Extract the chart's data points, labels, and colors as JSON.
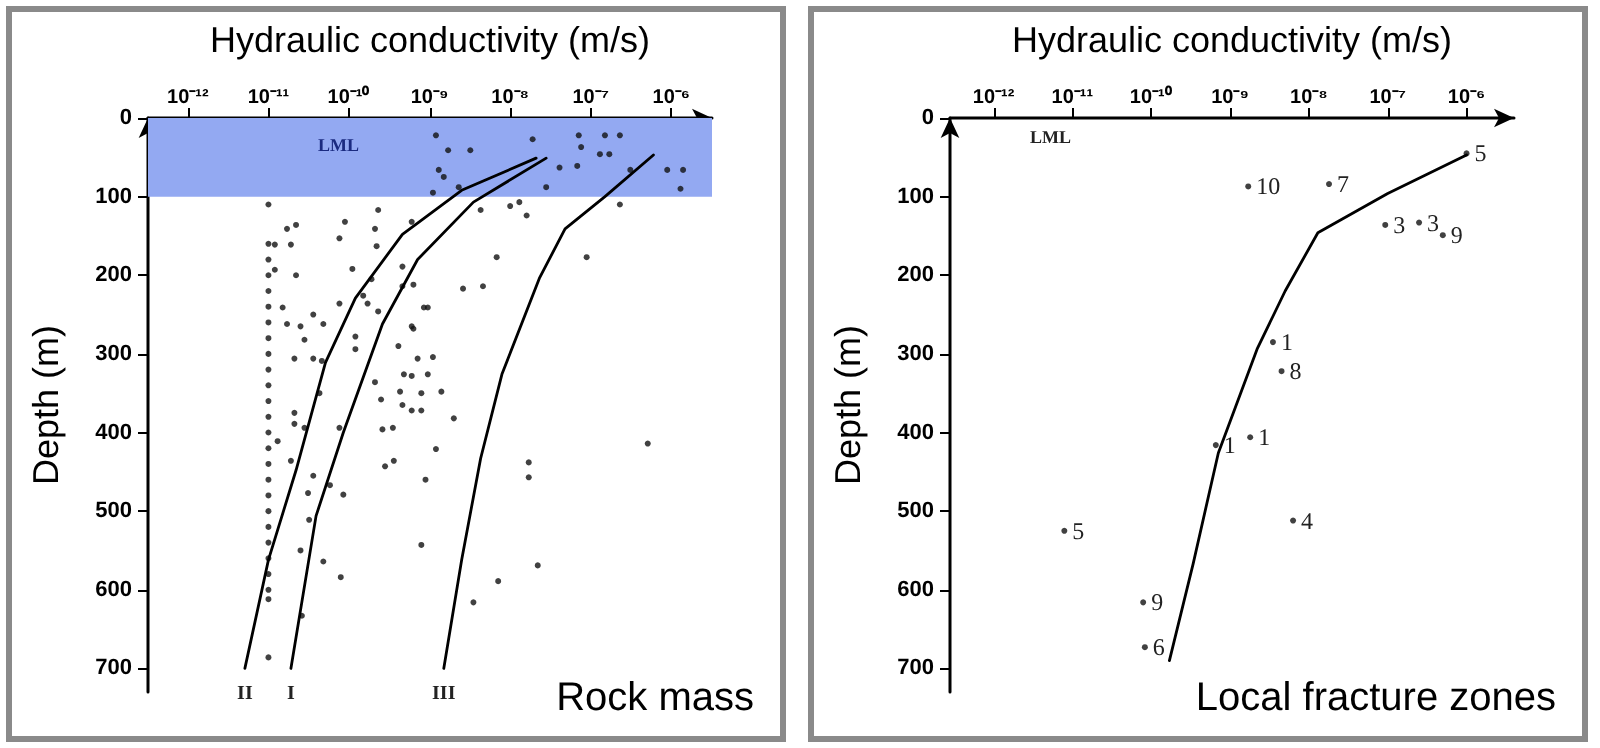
{
  "chart_data": [
    {
      "type": "scatter",
      "title": "Rock mass",
      "xlabel": "Hydraulic conductivity (m/s)",
      "ylabel": "Depth (m)",
      "log": "x",
      "xlim": [
        3.2e-13,
        3.2e-06
      ],
      "xticks": [
        {
          "value": 1e-12,
          "label": "10⁻¹²"
        },
        {
          "value": 1e-11,
          "label": "10⁻¹¹"
        },
        {
          "value": 1e-10,
          "label": "10⁻¹⁰"
        },
        {
          "value": 1e-09,
          "label": "10⁻⁹"
        },
        {
          "value": 1e-08,
          "label": "10⁻⁸"
        },
        {
          "value": 1e-07,
          "label": "10⁻⁷"
        },
        {
          "value": 1e-06,
          "label": "10⁻⁶"
        }
      ],
      "ylim": [
        730,
        0
      ],
      "yticks": [
        0,
        100,
        200,
        300,
        400,
        500,
        600,
        700
      ],
      "grid": false,
      "legend": false,
      "bands": [
        {
          "axis": "y",
          "from": 0,
          "to": 100,
          "label": "LML",
          "color": "#93a9f2"
        }
      ],
      "series": [
        {
          "type": "scatter",
          "color": "#111111",
          "marker": "circle",
          "x": [
            1.2e-09,
            1.7e-09,
            3.2e-09,
            1.3e-09,
            1.5e-09,
            2.3e-09,
            1.1e-09,
            1.9e-08,
            2.8e-08,
            4.1e-08,
            6.8e-08,
            7.1e-08,
            7.6e-08,
            1.5e-07,
            2.3e-07,
            1.3e-07,
            1.7e-07,
            3.1e-07,
            8.9e-07,
            1.4e-06,
            1.3e-06,
            2.3e-07,
            2.3e-10,
            1.7e-11,
            2.2e-11,
            1.2e-11,
            1.9e-11,
            7.6e-11,
            8.9e-11,
            2.1e-10,
            2.2e-10,
            6e-10,
            4.3e-09,
            1e-08,
            1.3e-08,
            1.6e-08,
            6.8e-09,
            8.9e-08,
            2.2e-11,
            1.2e-11,
            1.1e-10,
            1.9e-10,
            4.6e-10,
            4.6e-10,
            6.3e-10,
            2.6e-09,
            4.6e-09,
            1.5e-10,
            1.7e-10,
            2.3e-10,
            7.6e-11,
            8.5e-10,
            9.5e-10,
            1.5e-11,
            3.6e-11,
            4.8e-11,
            1.7e-11,
            2.5e-11,
            2.8e-11,
            1.2e-10,
            6e-10,
            6.3e-10,
            4.1e-10,
            1.2e-10,
            3.6e-11,
            2.1e-11,
            4.6e-11,
            7.1e-10,
            1.1e-09,
            4.8e-10,
            6e-10,
            9.5e-10,
            2.1e-10,
            2.5e-10,
            4.3e-10,
            4.6e-10,
            6e-10,
            7.9e-10,
            7.9e-10,
            1.4e-09,
            2e-09,
            4.3e-11,
            2.1e-11,
            2.1e-11,
            2.8e-11,
            1.3e-11,
            7.6e-11,
            2.6e-10,
            3.5e-10,
            2.8e-10,
            3.6e-10,
            1.2e-09,
            8.9e-10,
            1.9e-11,
            3.6e-11,
            3.1e-11,
            8.5e-11,
            5.8e-11,
            3.2e-11,
            2.5e-11,
            4.8e-11,
            7.9e-11,
            2.6e-11,
            7.9e-10,
            1.7e-08,
            1.7e-08,
            5.1e-07,
            2.2e-08,
            7.1e-09,
            3.5e-09,
            1e-11,
            1e-11,
            1e-11,
            1e-11,
            1e-11,
            1e-11,
            1e-11,
            1e-11,
            1e-11,
            1e-11,
            1e-11,
            1e-11,
            1e-11,
            1e-11,
            1e-11,
            1e-11,
            1e-11,
            1e-11,
            1e-11,
            1e-11,
            1e-11,
            1e-11,
            1e-11,
            1e-11,
            1e-11,
            1e-11
          ],
          "values": [
            22,
            41,
            41,
            66,
            75,
            88,
            95,
            27,
            88,
            63,
            61,
            22,
            37,
            22,
            22,
            46,
            46,
            66,
            66,
            66,
            90,
            110,
            117,
            141,
            136,
            161,
            161,
            153,
            132,
            141,
            163,
            132,
            117,
            112,
            107,
            124,
            177,
            177,
            200,
            193,
            192,
            205,
            189,
            214,
            212,
            217,
            214,
            226,
            236,
            246,
            236,
            241,
            241,
            241,
            250,
            262,
            262,
            265,
            282,
            278,
            265,
            268,
            290,
            294,
            306,
            306,
            309,
            306,
            304,
            326,
            328,
            326,
            336,
            358,
            348,
            365,
            372,
            372,
            350,
            348,
            382,
            350,
            375,
            389,
            394,
            411,
            394,
            396,
            394,
            443,
            436,
            421,
            460,
            436,
            455,
            477,
            479,
            467,
            511,
            550,
            564,
            584,
            633,
            543,
            438,
            457,
            414,
            569,
            589,
            616,
            686,
            110,
            160,
            180,
            200,
            220,
            240,
            260,
            280,
            300,
            320,
            340,
            360,
            380,
            400,
            420,
            440,
            460,
            480,
            500,
            520,
            540,
            560,
            580,
            600,
            612
          ]
        },
        {
          "type": "line",
          "name": "II",
          "color": "#000000",
          "marker": "none",
          "line_style": "solid",
          "x": [
            2.1e-08,
            2.5e-09,
            4.6e-10,
            1.2e-10,
            5.1e-11,
            2.2e-11,
            1e-11,
            5.1e-12
          ],
          "values": [
            51,
            92,
            148,
            229,
            311,
            448,
            562,
            700
          ]
        },
        {
          "type": "line",
          "name": "I",
          "color": "#000000",
          "marker": "none",
          "line_style": "solid",
          "x": [
            2.8e-08,
            3.5e-09,
            7.1e-10,
            2.6e-10,
            8.5e-11,
            3.9e-11,
            1.9e-11
          ],
          "values": [
            51,
            107,
            180,
            262,
            400,
            506,
            700
          ]
        },
        {
          "type": "line",
          "name": "III",
          "color": "#000000",
          "marker": "none",
          "line_style": "solid",
          "x": [
            6e-07,
            1.5e-07,
            4.8e-08,
            2.3e-08,
            7.9e-09,
            4.3e-09,
            2.5e-09,
            1.5e-09
          ],
          "values": [
            47,
            100,
            141,
            204,
            326,
            433,
            562,
            700
          ]
        }
      ]
    },
    {
      "type": "scatter",
      "title": "Local fracture zones",
      "xlabel": "Hydraulic conductivity (m/s)",
      "ylabel": "Depth (m)",
      "log": "x",
      "xlim": [
        2.8e-13,
        4e-06
      ],
      "xticks": [
        {
          "value": 1e-12,
          "label": "10⁻¹²"
        },
        {
          "value": 1e-11,
          "label": "10⁻¹¹"
        },
        {
          "value": 1e-10,
          "label": "10⁻¹⁰"
        },
        {
          "value": 1e-09,
          "label": "10⁻⁹"
        },
        {
          "value": 1e-08,
          "label": "10⁻⁸"
        },
        {
          "value": 1e-07,
          "label": "10⁻⁷"
        },
        {
          "value": 1e-06,
          "label": "10⁻⁶"
        }
      ],
      "ylim": [
        730,
        0
      ],
      "yticks": [
        0,
        100,
        200,
        300,
        400,
        500,
        600,
        700
      ],
      "grid": false,
      "legend": false,
      "annotations": [
        "LML",
        {
          "text": "5",
          "x": 1e-06,
          "y": 45
        },
        {
          "text": "10",
          "x": 1.7e-09,
          "y": 87
        },
        {
          "text": "7",
          "x": 1.8e-08,
          "y": 84
        },
        {
          "text": "3",
          "x": 9.3e-08,
          "y": 136
        },
        {
          "text": "3",
          "x": 2.5e-07,
          "y": 133
        },
        {
          "text": "9",
          "x": 5e-07,
          "y": 149
        },
        {
          "text": "1",
          "x": 3.5e-09,
          "y": 285
        },
        {
          "text": "8",
          "x": 4.5e-09,
          "y": 322
        },
        {
          "text": "1",
          "x": 6.6e-10,
          "y": 416
        },
        {
          "text": "1",
          "x": 1.8e-09,
          "y": 406
        },
        {
          "text": "5",
          "x": 7.9e-12,
          "y": 525
        },
        {
          "text": "4",
          "x": 6.3e-09,
          "y": 512
        },
        {
          "text": "9",
          "x": 7.9e-11,
          "y": 616
        },
        {
          "text": "6",
          "x": 8.3e-11,
          "y": 673
        }
      ],
      "series": [
        {
          "type": "scatter",
          "color": "#111111",
          "marker": "circle",
          "x": [
            1e-06,
            1.7e-09,
            1.8e-08,
            9.3e-08,
            2.5e-07,
            5e-07,
            3.5e-09,
            4.5e-09,
            6.6e-10,
            1.8e-09,
            7.9e-12,
            6.3e-09,
            7.9e-11,
            8.3e-11
          ],
          "values": [
            45,
            87,
            84,
            136,
            133,
            149,
            285,
            322,
            416,
            406,
            525,
            512,
            616,
            673
          ]
        },
        {
          "type": "line",
          "color": "#000000",
          "marker": "none",
          "line_style": "solid",
          "x": [
            1e-06,
            1e-07,
            1.3e-08,
            5e-09,
            2.2e-09,
            7.1e-10,
            3.4e-10,
            1.7e-10
          ],
          "values": [
            47,
            96,
            146,
            220,
            294,
            426,
            567,
            690
          ]
        }
      ]
    }
  ]
}
